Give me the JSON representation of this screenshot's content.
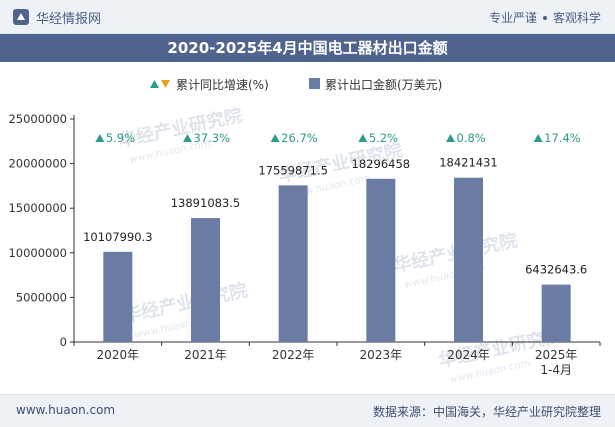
{
  "header": {
    "brand": "华经情报网",
    "tagline_left": "专业严谨",
    "tagline_right": "客观科学"
  },
  "title": "2020-2025年4月中国电工器材出口金额",
  "legend": {
    "growth_label": "累计同比增速(%)",
    "value_label": "累计出口金额(万美元)"
  },
  "watermark": {
    "cn": "华经产业研究院",
    "en": "www.huaon.com"
  },
  "footer": {
    "url": "www.huaon.com",
    "source": "数据来源：中国海关，华经产业研究院整理"
  },
  "colors": {
    "bar": "#6a7ca3",
    "growth_up": "#2e9a8a",
    "growth_down": "#e8a317",
    "axis": "#333333",
    "title_bg": "#4e638d"
  },
  "chart_data": {
    "type": "bar",
    "title": "2020-2025年4月中国电工器材出口金额",
    "categories": [
      "2020年",
      "2021年",
      "2022年",
      "2023年",
      "2024年",
      "2025年\n1-4月"
    ],
    "ylim": [
      0,
      25000000
    ],
    "yticks": [
      0,
      5000000,
      10000000,
      15000000,
      20000000,
      25000000
    ],
    "ytick_labels": [
      "0",
      "5000000",
      "10000000",
      "15000000",
      "20000000",
      "25000000"
    ],
    "grid": false,
    "legend_position": "top-center",
    "series": [
      {
        "name": "累计出口金额(万美元)",
        "type": "bar",
        "values": [
          10107990.3,
          13891083.5,
          17559871.5,
          18296458,
          18421431,
          6432643.6
        ],
        "labels": [
          "10107990.3",
          "13891083.5",
          "17559871.5",
          "18296458",
          "18421431",
          "6432643.6"
        ]
      },
      {
        "name": "累计同比增速(%)",
        "type": "annotation",
        "values": [
          5.9,
          37.3,
          26.7,
          5.2,
          0.8,
          17.4
        ],
        "labels": [
          "5.9%",
          "37.3%",
          "26.7%",
          "5.2%",
          "0.8%",
          "17.4%"
        ]
      }
    ]
  }
}
